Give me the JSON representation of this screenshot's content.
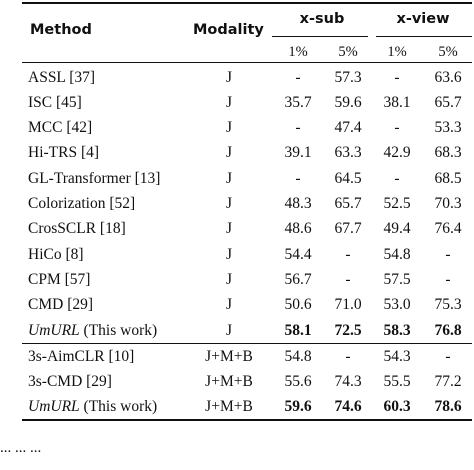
{
  "table": {
    "headers": {
      "method": "Method",
      "modality": "Modality",
      "xsub": "x-sub",
      "xview": "x-view",
      "xsub_1": "1%",
      "xsub_5": "5%",
      "xview_1": "1%",
      "xview_5": "5%"
    },
    "rows": [
      {
        "method": "ASSL [37]",
        "modality": "J",
        "xsub1": "-",
        "xsub5": "57.3",
        "xview1": "-",
        "xview5": "63.6"
      },
      {
        "method": "ISC [45]",
        "modality": "J",
        "xsub1": "35.7",
        "xsub5": "59.6",
        "xview1": "38.1",
        "xview5": "65.7"
      },
      {
        "method": "MCC [42]",
        "modality": "J",
        "xsub1": "-",
        "xsub5": "47.4",
        "xview1": "-",
        "xview5": "53.3"
      },
      {
        "method": "Hi-TRS [4]",
        "modality": "J",
        "xsub1": "39.1",
        "xsub5": "63.3",
        "xview1": "42.9",
        "xview5": "68.3"
      },
      {
        "method": "GL-Transformer [13]",
        "modality": "J",
        "xsub1": "-",
        "xsub5": "64.5",
        "xview1": "-",
        "xview5": "68.5"
      },
      {
        "method": "Colorization [52]",
        "modality": "J",
        "xsub1": "48.3",
        "xsub5": "65.7",
        "xview1": "52.5",
        "xview5": "70.3"
      },
      {
        "method": "CrosSCLR [18]",
        "modality": "J",
        "xsub1": "48.6",
        "xsub5": "67.7",
        "xview1": "49.4",
        "xview5": "76.4"
      },
      {
        "method": "HiCo [8]",
        "modality": "J",
        "xsub1": "54.4",
        "xsub5": "-",
        "xview1": "54.8",
        "xview5": "-"
      },
      {
        "method": "CPM [57]",
        "modality": "J",
        "xsub1": "56.7",
        "xsub5": "-",
        "xview1": "57.5",
        "xview5": "-"
      },
      {
        "method": "CMD [29]",
        "modality": "J",
        "xsub1": "50.6",
        "xsub5": "71.0",
        "xview1": "53.0",
        "xview5": "75.3"
      },
      {
        "method_italic": "UmURL",
        "method_suffix": " (This work)",
        "modality": "J",
        "xsub1": "58.1",
        "xsub5": "72.5",
        "xview1": "58.3",
        "xview5": "76.8"
      },
      {
        "method": "3s-AimCLR [10]",
        "modality": "J+M+B",
        "xsub1": "54.8",
        "xsub5": "-",
        "xview1": "54.3",
        "xview5": "-"
      },
      {
        "method": "3s-CMD [29]",
        "modality": "J+M+B",
        "xsub1": "55.6",
        "xsub5": "74.3",
        "xview1": "55.5",
        "xview5": "77.2"
      },
      {
        "method_italic": "UmURL",
        "method_suffix": " (This work)",
        "modality": "J+M+B",
        "xsub1": "59.6",
        "xsub5": "74.6",
        "xview1": "60.3",
        "xview5": "78.6"
      }
    ]
  },
  "caption_fragment": "   ...  ...  ..."
}
